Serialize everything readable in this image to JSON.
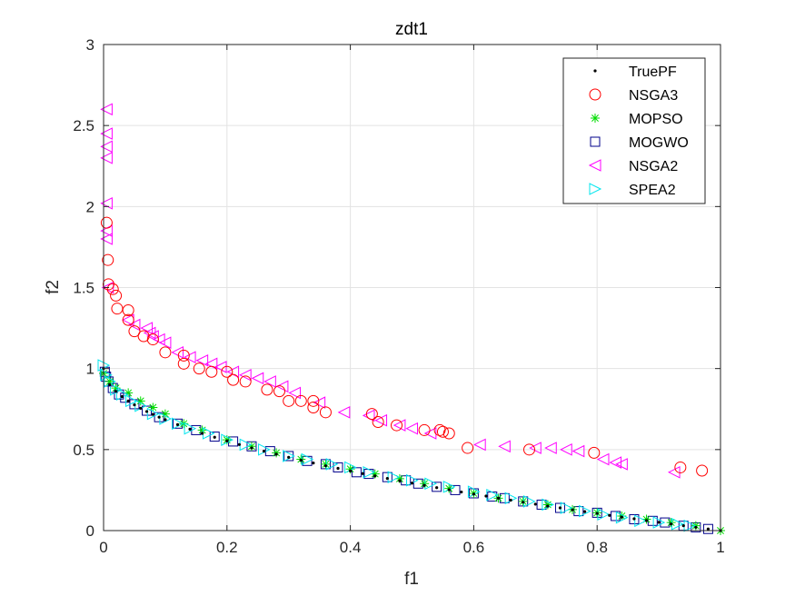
{
  "chart_data": {
    "type": "scatter",
    "title": "zdt1",
    "xlabel": "f1",
    "ylabel": "f2",
    "xlim": [
      0,
      1
    ],
    "ylim": [
      0,
      3
    ],
    "x_ticks": [
      "0",
      "0.2",
      "0.4",
      "0.6",
      "0.8",
      "1"
    ],
    "y_ticks": [
      "0",
      "0.5",
      "1",
      "1.5",
      "2",
      "2.5",
      "3"
    ],
    "grid": true,
    "legend_position": "top-right",
    "series": [
      {
        "name": "TruePF",
        "marker": "dot",
        "color": "#000000",
        "points": [
          [
            0,
            1
          ],
          [
            0.01,
            0.9
          ],
          [
            0.02,
            0.859
          ],
          [
            0.03,
            0.827
          ],
          [
            0.04,
            0.8
          ],
          [
            0.05,
            0.776
          ],
          [
            0.06,
            0.755
          ],
          [
            0.07,
            0.735
          ],
          [
            0.08,
            0.717
          ],
          [
            0.09,
            0.7
          ],
          [
            0.1,
            0.684
          ],
          [
            0.12,
            0.654
          ],
          [
            0.14,
            0.626
          ],
          [
            0.16,
            0.6
          ],
          [
            0.18,
            0.576
          ],
          [
            0.2,
            0.553
          ],
          [
            0.22,
            0.531
          ],
          [
            0.24,
            0.51
          ],
          [
            0.26,
            0.49
          ],
          [
            0.28,
            0.471
          ],
          [
            0.3,
            0.452
          ],
          [
            0.32,
            0.434
          ],
          [
            0.34,
            0.417
          ],
          [
            0.36,
            0.4
          ],
          [
            0.38,
            0.384
          ],
          [
            0.4,
            0.368
          ],
          [
            0.42,
            0.352
          ],
          [
            0.44,
            0.337
          ],
          [
            0.46,
            0.322
          ],
          [
            0.48,
            0.307
          ],
          [
            0.5,
            0.293
          ],
          [
            0.52,
            0.279
          ],
          [
            0.54,
            0.265
          ],
          [
            0.56,
            0.252
          ],
          [
            0.58,
            0.238
          ],
          [
            0.6,
            0.225
          ],
          [
            0.62,
            0.213
          ],
          [
            0.64,
            0.2
          ],
          [
            0.66,
            0.188
          ],
          [
            0.68,
            0.175
          ],
          [
            0.7,
            0.163
          ],
          [
            0.72,
            0.151
          ],
          [
            0.74,
            0.14
          ],
          [
            0.76,
            0.128
          ],
          [
            0.78,
            0.117
          ],
          [
            0.8,
            0.106
          ],
          [
            0.82,
            0.094
          ],
          [
            0.84,
            0.083
          ],
          [
            0.86,
            0.073
          ],
          [
            0.88,
            0.062
          ],
          [
            0.9,
            0.051
          ],
          [
            0.92,
            0.041
          ],
          [
            0.94,
            0.03
          ],
          [
            0.96,
            0.02
          ],
          [
            0.98,
            0.01
          ],
          [
            1,
            0
          ]
        ]
      },
      {
        "name": "NSGA3",
        "marker": "circle",
        "color": "#ff0000",
        "points": [
          [
            0.005,
            1.9
          ],
          [
            0.007,
            1.67
          ],
          [
            0.008,
            1.52
          ],
          [
            0.015,
            1.49
          ],
          [
            0.02,
            1.45
          ],
          [
            0.022,
            1.37
          ],
          [
            0.04,
            1.36
          ],
          [
            0.04,
            1.3
          ],
          [
            0.05,
            1.23
          ],
          [
            0.065,
            1.2
          ],
          [
            0.08,
            1.18
          ],
          [
            0.1,
            1.1
          ],
          [
            0.13,
            1.08
          ],
          [
            0.13,
            1.03
          ],
          [
            0.155,
            1.0
          ],
          [
            0.175,
            0.98
          ],
          [
            0.2,
            0.98
          ],
          [
            0.21,
            0.93
          ],
          [
            0.23,
            0.92
          ],
          [
            0.265,
            0.87
          ],
          [
            0.285,
            0.86
          ],
          [
            0.3,
            0.8
          ],
          [
            0.32,
            0.8
          ],
          [
            0.34,
            0.8
          ],
          [
            0.34,
            0.76
          ],
          [
            0.36,
            0.73
          ],
          [
            0.435,
            0.72
          ],
          [
            0.445,
            0.67
          ],
          [
            0.475,
            0.65
          ],
          [
            0.52,
            0.62
          ],
          [
            0.545,
            0.62
          ],
          [
            0.55,
            0.61
          ],
          [
            0.56,
            0.6
          ],
          [
            0.59,
            0.51
          ],
          [
            0.69,
            0.5
          ],
          [
            0.795,
            0.48
          ],
          [
            0.935,
            0.39
          ],
          [
            0.97,
            0.37
          ]
        ]
      },
      {
        "name": "MOPSO",
        "marker": "star",
        "color": "#00dd00",
        "points": [
          [
            0.0,
            0.97
          ],
          [
            0.01,
            0.92
          ],
          [
            0.02,
            0.88
          ],
          [
            0.04,
            0.85
          ],
          [
            0.06,
            0.8
          ],
          [
            0.08,
            0.76
          ],
          [
            0.1,
            0.72
          ],
          [
            0.13,
            0.66
          ],
          [
            0.16,
            0.62
          ],
          [
            0.2,
            0.56
          ],
          [
            0.24,
            0.52
          ],
          [
            0.28,
            0.48
          ],
          [
            0.32,
            0.44
          ],
          [
            0.36,
            0.41
          ],
          [
            0.4,
            0.38
          ],
          [
            0.44,
            0.35
          ],
          [
            0.48,
            0.32
          ],
          [
            0.52,
            0.29
          ],
          [
            0.56,
            0.26
          ],
          [
            0.6,
            0.23
          ],
          [
            0.64,
            0.2
          ],
          [
            0.68,
            0.18
          ],
          [
            0.72,
            0.16
          ],
          [
            0.76,
            0.13
          ],
          [
            0.8,
            0.11
          ],
          [
            0.84,
            0.09
          ],
          [
            0.88,
            0.07
          ],
          [
            0.92,
            0.05
          ],
          [
            0.96,
            0.03
          ],
          [
            1.0,
            0.0
          ]
        ]
      },
      {
        "name": "MOGWO",
        "marker": "square",
        "color": "#00008b",
        "points": [
          [
            0.002,
            0.98
          ],
          [
            0.004,
            0.95
          ],
          [
            0.008,
            0.92
          ],
          [
            0.015,
            0.88
          ],
          [
            0.025,
            0.84
          ],
          [
            0.035,
            0.82
          ],
          [
            0.05,
            0.78
          ],
          [
            0.07,
            0.74
          ],
          [
            0.09,
            0.7
          ],
          [
            0.12,
            0.66
          ],
          [
            0.15,
            0.62
          ],
          [
            0.18,
            0.58
          ],
          [
            0.21,
            0.55
          ],
          [
            0.24,
            0.52
          ],
          [
            0.27,
            0.49
          ],
          [
            0.3,
            0.46
          ],
          [
            0.33,
            0.43
          ],
          [
            0.36,
            0.41
          ],
          [
            0.38,
            0.39
          ],
          [
            0.41,
            0.36
          ],
          [
            0.43,
            0.35
          ],
          [
            0.46,
            0.33
          ],
          [
            0.49,
            0.31
          ],
          [
            0.51,
            0.29
          ],
          [
            0.54,
            0.27
          ],
          [
            0.57,
            0.25
          ],
          [
            0.6,
            0.23
          ],
          [
            0.63,
            0.21
          ],
          [
            0.65,
            0.2
          ],
          [
            0.68,
            0.18
          ],
          [
            0.71,
            0.16
          ],
          [
            0.74,
            0.14
          ],
          [
            0.77,
            0.12
          ],
          [
            0.8,
            0.11
          ],
          [
            0.83,
            0.09
          ],
          [
            0.86,
            0.07
          ],
          [
            0.89,
            0.06
          ],
          [
            0.91,
            0.05
          ],
          [
            0.94,
            0.03
          ],
          [
            0.96,
            0.02
          ],
          [
            0.98,
            0.01
          ]
        ]
      },
      {
        "name": "NSGA2",
        "marker": "triangle-left",
        "color": "#ff00ff",
        "points": [
          [
            0.005,
            2.6
          ],
          [
            0.005,
            2.45
          ],
          [
            0.005,
            2.37
          ],
          [
            0.005,
            2.3
          ],
          [
            0.005,
            2.02
          ],
          [
            0.005,
            1.85
          ],
          [
            0.005,
            1.8
          ],
          [
            0.007,
            1.5
          ],
          [
            0.04,
            1.3
          ],
          [
            0.05,
            1.27
          ],
          [
            0.07,
            1.25
          ],
          [
            0.075,
            1.22
          ],
          [
            0.08,
            1.2
          ],
          [
            0.09,
            1.18
          ],
          [
            0.1,
            1.16
          ],
          [
            0.12,
            1.1
          ],
          [
            0.14,
            1.07
          ],
          [
            0.16,
            1.05
          ],
          [
            0.175,
            1.03
          ],
          [
            0.19,
            1.01
          ],
          [
            0.21,
            0.98
          ],
          [
            0.23,
            0.96
          ],
          [
            0.25,
            0.94
          ],
          [
            0.27,
            0.92
          ],
          [
            0.29,
            0.89
          ],
          [
            0.31,
            0.85
          ],
          [
            0.35,
            0.79
          ],
          [
            0.39,
            0.73
          ],
          [
            0.43,
            0.71
          ],
          [
            0.45,
            0.68
          ],
          [
            0.48,
            0.65
          ],
          [
            0.5,
            0.63
          ],
          [
            0.53,
            0.6
          ],
          [
            0.61,
            0.53
          ],
          [
            0.65,
            0.52
          ],
          [
            0.7,
            0.51
          ],
          [
            0.725,
            0.51
          ],
          [
            0.75,
            0.5
          ],
          [
            0.77,
            0.49
          ],
          [
            0.81,
            0.44
          ],
          [
            0.83,
            0.42
          ],
          [
            0.84,
            0.41
          ],
          [
            0.925,
            0.36
          ]
        ]
      },
      {
        "name": "SPEA2",
        "marker": "triangle-right",
        "color": "#00e5ee",
        "points": [
          [
            0.0,
            1.02
          ],
          [
            0.004,
            0.96
          ],
          [
            0.01,
            0.92
          ],
          [
            0.02,
            0.87
          ],
          [
            0.03,
            0.84
          ],
          [
            0.045,
            0.8
          ],
          [
            0.06,
            0.77
          ],
          [
            0.08,
            0.72
          ],
          [
            0.1,
            0.69
          ],
          [
            0.12,
            0.66
          ],
          [
            0.14,
            0.63
          ],
          [
            0.17,
            0.6
          ],
          [
            0.2,
            0.56
          ],
          [
            0.23,
            0.53
          ],
          [
            0.26,
            0.5
          ],
          [
            0.3,
            0.46
          ],
          [
            0.33,
            0.44
          ],
          [
            0.37,
            0.41
          ],
          [
            0.4,
            0.39
          ],
          [
            0.43,
            0.36
          ],
          [
            0.47,
            0.33
          ],
          [
            0.5,
            0.31
          ],
          [
            0.53,
            0.29
          ],
          [
            0.56,
            0.27
          ],
          [
            0.6,
            0.24
          ],
          [
            0.63,
            0.22
          ],
          [
            0.66,
            0.2
          ],
          [
            0.69,
            0.18
          ],
          [
            0.72,
            0.16
          ],
          [
            0.75,
            0.14
          ],
          [
            0.78,
            0.12
          ],
          [
            0.81,
            0.1
          ],
          [
            0.84,
            0.08
          ],
          [
            0.87,
            0.06
          ],
          [
            0.9,
            0.05
          ],
          [
            0.93,
            0.04
          ],
          [
            0.95,
            0.03
          ]
        ]
      }
    ]
  }
}
